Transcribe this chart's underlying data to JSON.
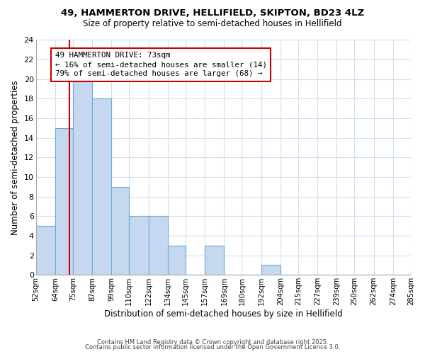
{
  "title1": "49, HAMMERTON DRIVE, HELLIFIELD, SKIPTON, BD23 4LZ",
  "title2": "Size of property relative to semi-detached houses in Hellifield",
  "xlabel": "Distribution of semi-detached houses by size in Hellifield",
  "ylabel": "Number of semi-detached properties",
  "bin_edges": [
    52,
    64,
    75,
    87,
    99,
    110,
    122,
    134,
    145,
    157,
    169,
    180,
    192,
    204,
    215,
    227,
    239,
    250,
    262,
    274,
    285
  ],
  "bar_heights": [
    5,
    15,
    20,
    18,
    9,
    6,
    6,
    3,
    0,
    3,
    0,
    0,
    1,
    0,
    0,
    0,
    0,
    0,
    0,
    0
  ],
  "bar_color": "#c5d8f0",
  "bar_edge_color": "#6aaad4",
  "property_size": 73,
  "vline_color": "#cc0000",
  "annotation_title": "49 HAMMERTON DRIVE: 73sqm",
  "annotation_line1": "← 16% of semi-detached houses are smaller (14)",
  "annotation_line2": "79% of semi-detached houses are larger (68) →",
  "annotation_box_color": "#cc0000",
  "ylim": [
    0,
    24
  ],
  "yticks": [
    0,
    2,
    4,
    6,
    8,
    10,
    12,
    14,
    16,
    18,
    20,
    22,
    24
  ],
  "footer1": "Contains HM Land Registry data © Crown copyright and database right 2025.",
  "footer2": "Contains public sector information licensed under the Open Government Licence 3.0.",
  "bg_color": "#ffffff",
  "grid_color": "#d0dff0",
  "title_fontsize": 9.5,
  "subtitle_fontsize": 8.5
}
